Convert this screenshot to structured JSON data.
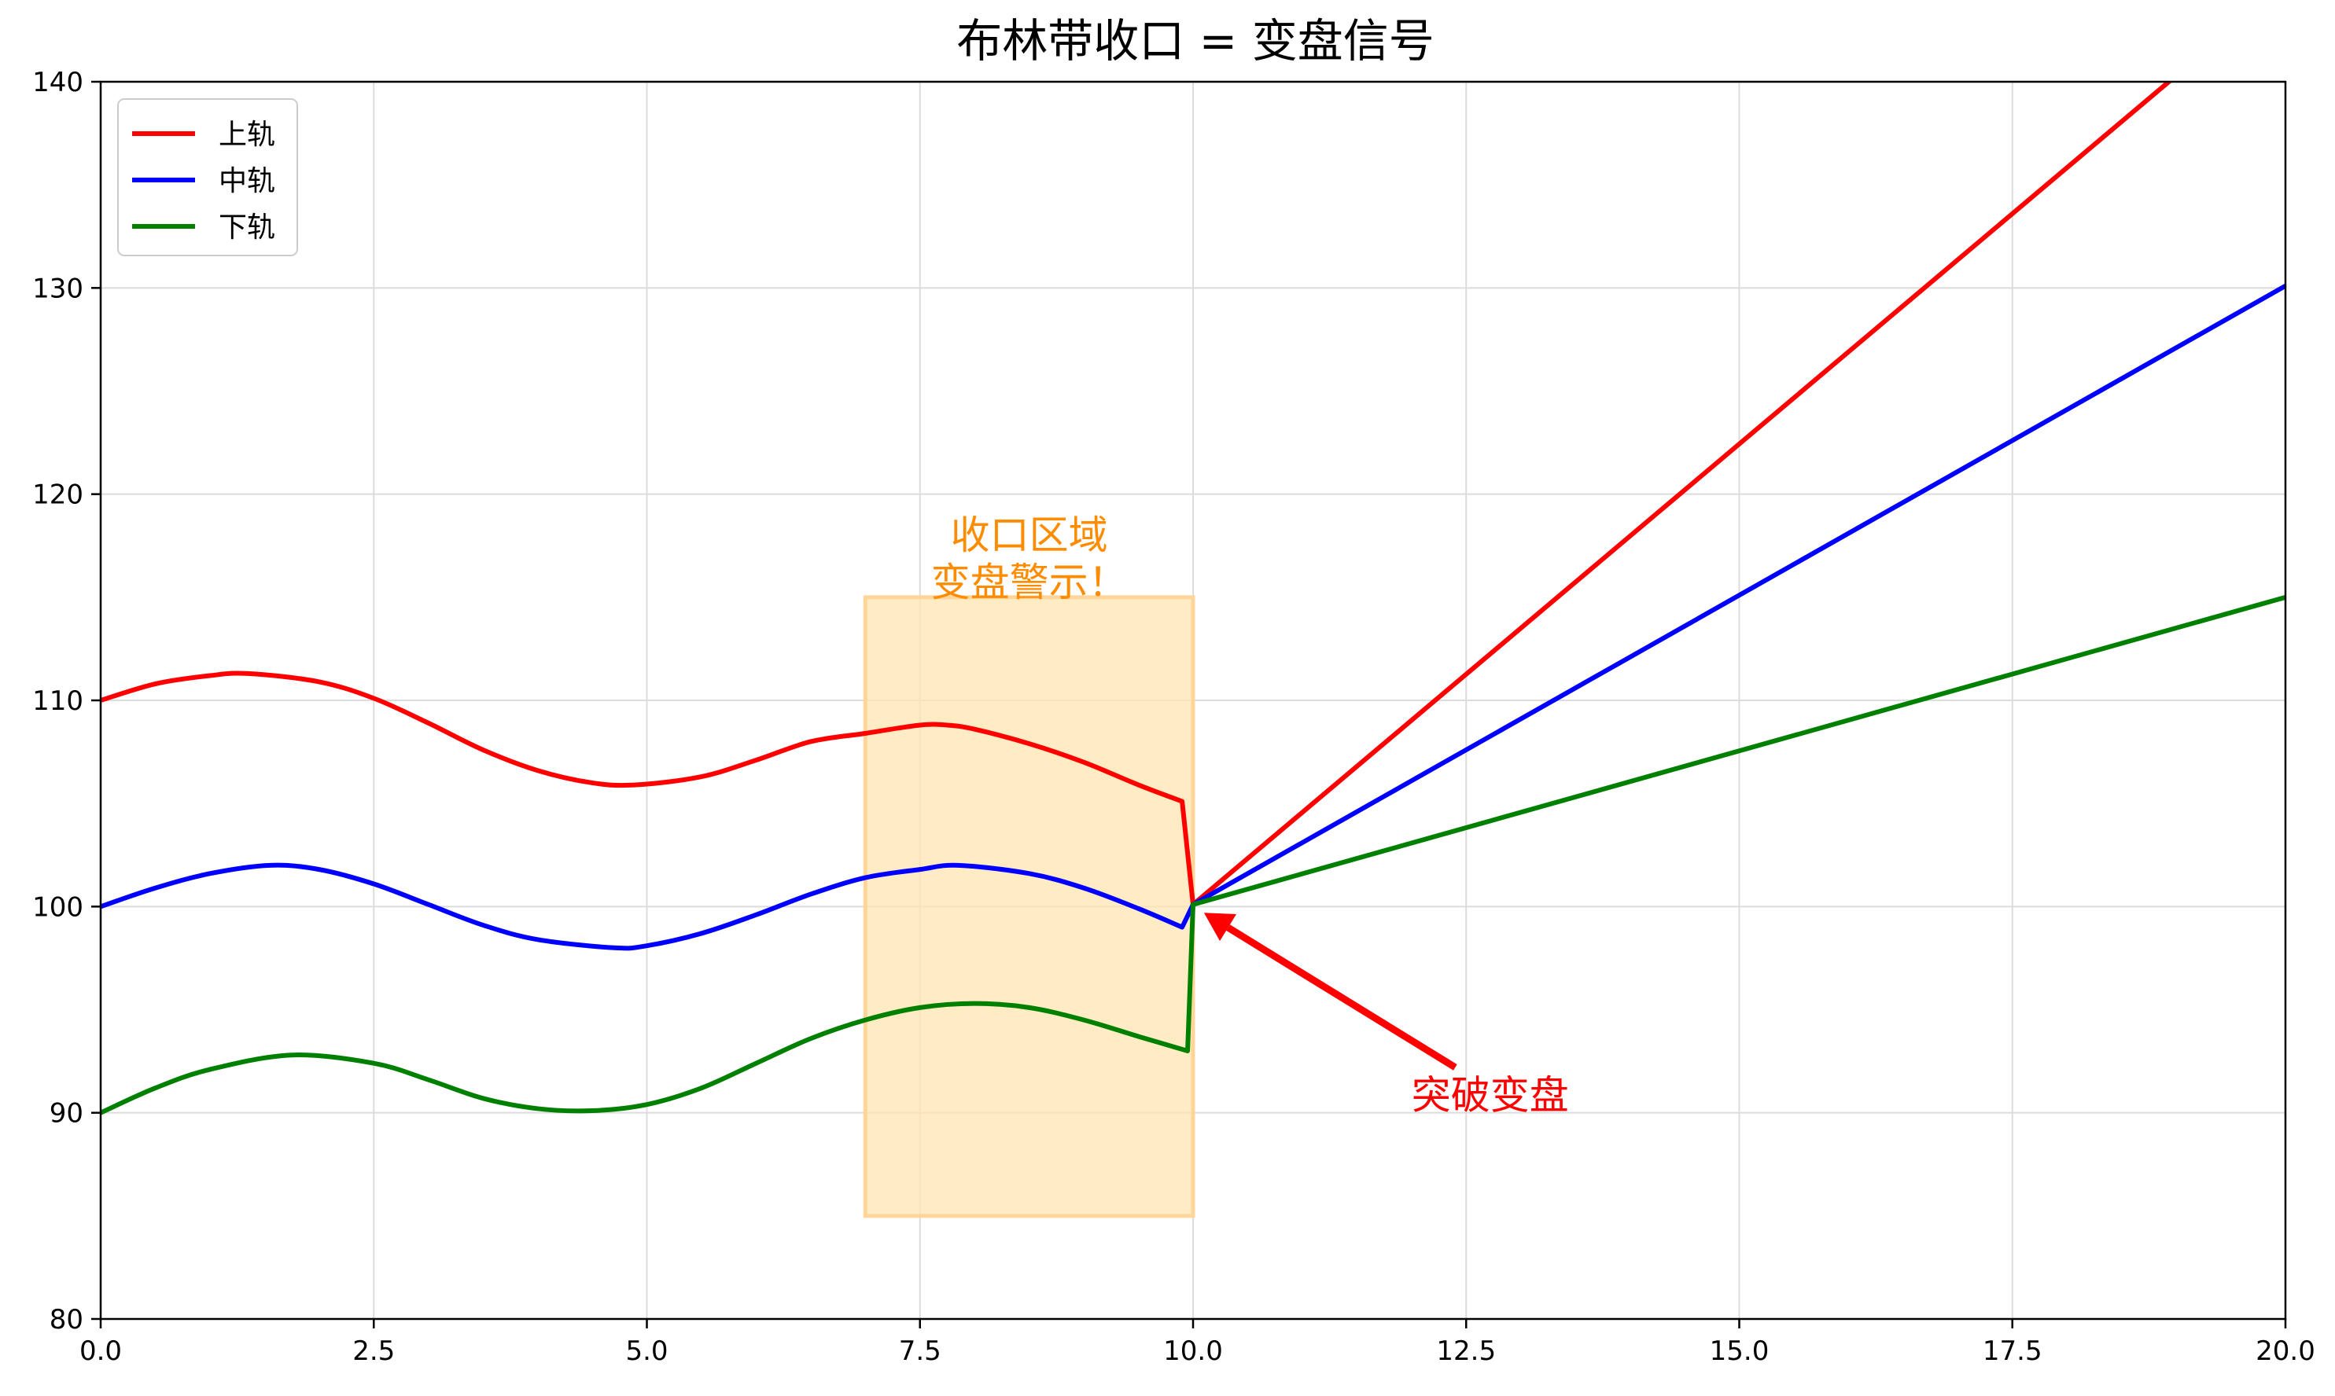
{
  "chart_data": {
    "type": "line",
    "title": "布林带收口 = 变盘信号",
    "xlabel": "",
    "ylabel": "",
    "xlim": [
      0,
      20
    ],
    "ylim": [
      80,
      140
    ],
    "x_ticks": [
      "0.0",
      "2.5",
      "5.0",
      "7.5",
      "10.0",
      "12.5",
      "15.0",
      "17.5",
      "20.0"
    ],
    "y_ticks": [
      "80",
      "90",
      "100",
      "110",
      "120",
      "130",
      "140"
    ],
    "grid": true,
    "legend_position": "top-left",
    "series": [
      {
        "name": "上轨",
        "color": "#ff0000",
        "x": [
          0,
          0.5,
          1.0,
          1.35,
          2.0,
          2.5,
          3.0,
          3.5,
          4.0,
          4.5,
          4.9,
          5.5,
          6.0,
          6.5,
          7.0,
          7.5,
          7.75,
          8.0,
          8.5,
          9.0,
          9.5,
          9.9,
          10.0,
          19.0
        ],
        "y": [
          110,
          110.8,
          111.2,
          111.3,
          110.9,
          110.1,
          108.9,
          107.6,
          106.6,
          106.0,
          105.9,
          106.3,
          107.1,
          108.0,
          108.4,
          108.8,
          108.8,
          108.6,
          107.9,
          107.0,
          105.9,
          105.1,
          100.1,
          140.3
        ]
      },
      {
        "name": "中轨",
        "color": "#0000ff",
        "x": [
          0,
          0.5,
          1.0,
          1.55,
          2.0,
          2.5,
          3.0,
          3.5,
          4.0,
          4.7,
          5.0,
          5.5,
          6.0,
          6.5,
          7.0,
          7.5,
          7.85,
          8.5,
          9.0,
          9.5,
          9.9,
          10.0,
          20.0
        ],
        "y": [
          100,
          100.9,
          101.6,
          102.0,
          101.8,
          101.1,
          100.1,
          99.1,
          98.4,
          98.0,
          98.1,
          98.7,
          99.6,
          100.6,
          101.4,
          101.8,
          102.0,
          101.6,
          100.9,
          99.9,
          99.0,
          100.1,
          130.1
        ]
      },
      {
        "name": "下轨",
        "color": "#008000",
        "x": [
          0,
          0.5,
          1.0,
          1.75,
          2.5,
          3.0,
          3.5,
          4.0,
          4.5,
          5.0,
          5.5,
          6.0,
          6.5,
          7.0,
          7.5,
          8.0,
          8.5,
          9.0,
          9.5,
          9.95,
          10.0,
          20.0
        ],
        "y": [
          90,
          91.2,
          92.1,
          92.8,
          92.4,
          91.6,
          90.7,
          90.2,
          90.1,
          90.4,
          91.2,
          92.4,
          93.6,
          94.5,
          95.1,
          95.3,
          95.1,
          94.5,
          93.7,
          93.0,
          100.1,
          115.0
        ]
      }
    ],
    "highlight_region": {
      "x_range": [
        7.0,
        10.0
      ],
      "y_range": [
        85,
        115
      ],
      "fill_color": "#ffe4b0",
      "edge_color": "#ffd59a"
    },
    "annotations": [
      {
        "lines": [
          "收口区域",
          "变盘警示！"
        ],
        "color": "#ff8c00",
        "anchor_data": [
          8.5,
          115
        ]
      },
      {
        "text": "突破变盘",
        "color": "#ff0000",
        "text_data": [
          12.0,
          90.2
        ],
        "arrow_from": [
          12.4,
          92.2
        ],
        "arrow_to": [
          10.1,
          99.7
        ]
      }
    ]
  }
}
